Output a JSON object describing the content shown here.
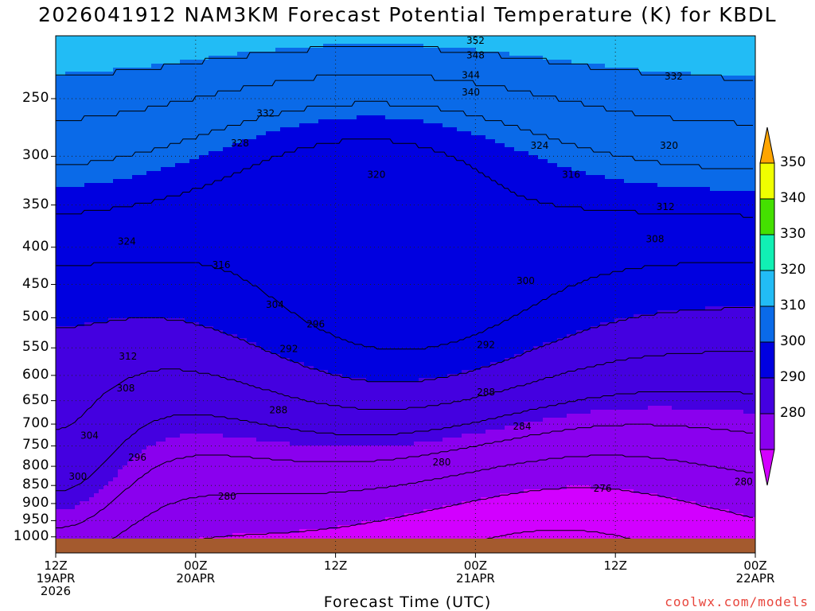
{
  "chart_data": {
    "type": "contour",
    "title": "2026041912 NAM3KM Forecast Potential Temperature (K) for KBDL",
    "xlabel": "Forecast Time (UTC)",
    "ylabel": "",
    "x_ticks": [
      {
        "hours": 0,
        "label": [
          "12Z",
          "19APR",
          "2026"
        ]
      },
      {
        "hours": 12,
        "label": [
          "00Z",
          "20APR"
        ]
      },
      {
        "hours": 24,
        "label": [
          "12Z"
        ]
      },
      {
        "hours": 36,
        "label": [
          "00Z",
          "21APR"
        ]
      },
      {
        "hours": 48,
        "label": [
          "12Z"
        ]
      },
      {
        "hours": 60,
        "label": [
          "00Z",
          "22APR"
        ]
      }
    ],
    "y_ticks": [
      250,
      300,
      350,
      400,
      450,
      500,
      550,
      600,
      650,
      700,
      750,
      800,
      850,
      900,
      950,
      1000
    ],
    "y_axis": "pressure (hPa), log scale, reversed",
    "grid": true,
    "colorbar": {
      "levels": [
        280,
        290,
        300,
        310,
        320,
        330,
        340,
        350
      ],
      "colors": [
        "#d200ff",
        "#8a00ee",
        "#4400e0",
        "#0000e0",
        "#0a6ae8",
        "#22bcf5",
        "#11f0b4",
        "#44e000",
        "#f0ff00",
        "#ffa500"
      ]
    },
    "contour_labels": [
      {
        "value": 352,
        "hours": 36.0,
        "p": 208
      },
      {
        "value": 348,
        "hours": 36.0,
        "p": 218
      },
      {
        "value": 344,
        "hours": 35.6,
        "p": 232
      },
      {
        "value": 340,
        "hours": 35.6,
        "p": 245
      },
      {
        "value": 332,
        "hours": 18.0,
        "p": 262
      },
      {
        "value": 332,
        "hours": 53.0,
        "p": 233
      },
      {
        "value": 328,
        "hours": 15.8,
        "p": 288
      },
      {
        "value": 324,
        "hours": 41.5,
        "p": 290
      },
      {
        "value": 320,
        "hours": 27.5,
        "p": 318
      },
      {
        "value": 320,
        "hours": 52.6,
        "p": 290
      },
      {
        "value": 316,
        "hours": 44.2,
        "p": 318
      },
      {
        "value": 312,
        "hours": 52.3,
        "p": 352
      },
      {
        "value": 308,
        "hours": 51.4,
        "p": 390
      },
      {
        "value": 324,
        "hours": 6.1,
        "p": 393
      },
      {
        "value": 316,
        "hours": 14.2,
        "p": 423
      },
      {
        "value": 304,
        "hours": 18.8,
        "p": 480
      },
      {
        "value": 300,
        "hours": 40.3,
        "p": 445
      },
      {
        "value": 296,
        "hours": 22.3,
        "p": 510
      },
      {
        "value": 292,
        "hours": 20.0,
        "p": 552
      },
      {
        "value": 292,
        "hours": 36.9,
        "p": 545
      },
      {
        "value": 312,
        "hours": 6.2,
        "p": 565
      },
      {
        "value": 308,
        "hours": 6.0,
        "p": 625
      },
      {
        "value": 288,
        "hours": 19.1,
        "p": 670
      },
      {
        "value": 288,
        "hours": 36.9,
        "p": 633
      },
      {
        "value": 284,
        "hours": 40.0,
        "p": 705
      },
      {
        "value": 304,
        "hours": 2.9,
        "p": 726
      },
      {
        "value": 296,
        "hours": 7.0,
        "p": 778
      },
      {
        "value": 300,
        "hours": 1.9,
        "p": 826
      },
      {
        "value": 280,
        "hours": 33.1,
        "p": 790
      },
      {
        "value": 280,
        "hours": 14.7,
        "p": 880
      },
      {
        "value": 276,
        "hours": 46.9,
        "p": 858
      },
      {
        "value": 280,
        "hours": 59.0,
        "p": 840
      }
    ]
  },
  "credit": "coolwx.com/models"
}
